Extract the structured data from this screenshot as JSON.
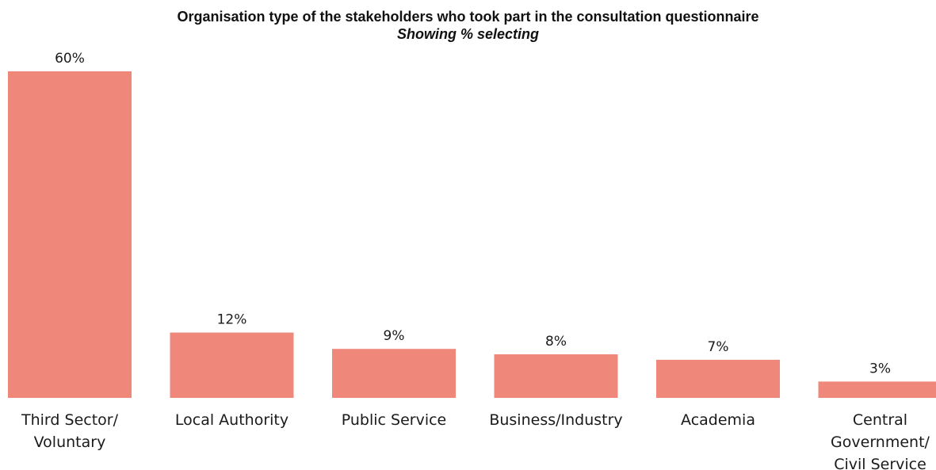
{
  "chart_data": {
    "type": "bar",
    "title": "Organisation type of the stakeholders who took part in the consultation questionnaire",
    "subtitle": "Showing % selecting",
    "categories": [
      [
        "Third Sector/",
        "Voluntary"
      ],
      [
        "Local Authority"
      ],
      [
        "Public Service"
      ],
      [
        "Business/Industry"
      ],
      [
        "Academia"
      ],
      [
        "Central",
        "Government/",
        "Civil Service"
      ]
    ],
    "values": [
      60,
      12,
      9,
      8,
      7,
      3
    ],
    "value_labels": [
      "60%",
      "12%",
      "9%",
      "8%",
      "7%",
      "3%"
    ],
    "ylim": [
      0,
      60
    ],
    "grid": false,
    "legend": "none",
    "bar_color": "#ef877a"
  }
}
